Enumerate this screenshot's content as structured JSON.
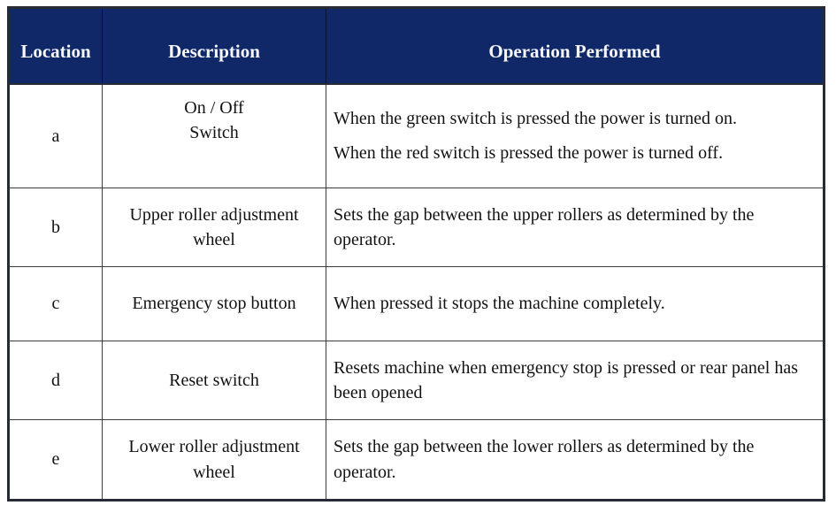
{
  "table": {
    "columns": [
      "Location",
      "Description",
      "Operation Performed"
    ],
    "rows": [
      {
        "location": "a",
        "description": "On / Off\nSwitch",
        "operations": [
          "When the green switch is pressed the power is turned on.",
          "When the red switch is pressed the power is turned off."
        ]
      },
      {
        "location": "b",
        "description": "Upper roller adjustment wheel",
        "operations": [
          "Sets the gap between the upper rollers as determined by the operator."
        ]
      },
      {
        "location": "c",
        "description": "Emergency stop button",
        "operations": [
          "When pressed it stops the machine completely."
        ]
      },
      {
        "location": "d",
        "description": "Reset switch",
        "operations": [
          "Resets machine when emergency stop is pressed or rear panel has been opened"
        ]
      },
      {
        "location": "e",
        "description": "Lower roller adjustment wheel",
        "operations": [
          "Sets the gap between the lower rollers as determined by the operator."
        ]
      }
    ],
    "colors": {
      "header_bg": "#112868",
      "header_text": "#f7f8fb",
      "body_text": "#121212",
      "grid_line": "#3c3c3c",
      "outer_border": "#272b36"
    }
  }
}
